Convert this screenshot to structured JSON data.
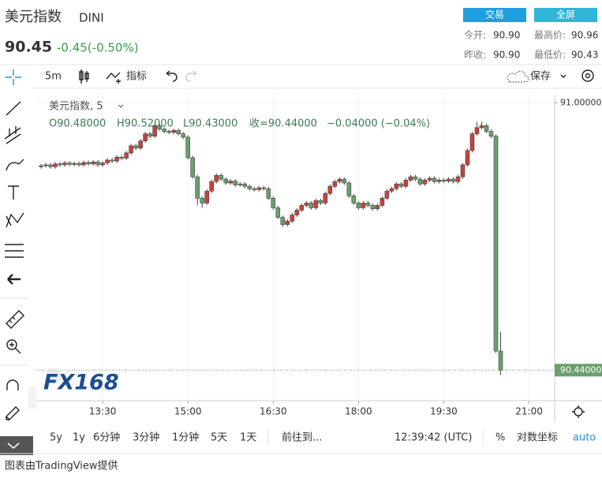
{
  "header": {
    "title": "美元指数",
    "symbol": "DINI",
    "price": "90.45",
    "change": "-0.45(-0.50%)",
    "trade_button": "交易",
    "fullscreen_button": "全屏"
  },
  "stats": {
    "open_label": "今开:",
    "open": "90.90",
    "high_label": "最高价:",
    "high": "90.96",
    "prev_close_label": "昨收:",
    "prev_close": "90.90",
    "low_label": "最低价:",
    "low": "90.43"
  },
  "toolbar": {
    "interval": "5m",
    "indicators": "指标",
    "save": "保存"
  },
  "bottom_bar": {
    "ranges": [
      "5y",
      "1y",
      "6分钟",
      "3分钟",
      "1分钟",
      "5天",
      "1天"
    ],
    "goto": "前往到...",
    "time": "12:39:42 (UTC)",
    "percent": "%",
    "log": "对数坐标",
    "auto": "auto"
  },
  "footer": "图表由TradingView提供",
  "watermark": "FX168",
  "chart_data": {
    "type": "candlestick",
    "legend_title": "美元指数, 5",
    "legend_values": [
      "O90.48000",
      "H90.52000",
      "L90.43000",
      "收=90.44000",
      "−0.04000 (−0.04%)"
    ],
    "up_color": "#c8423b",
    "down_color": "#6a9f6e",
    "x": [
      "12:25",
      "12:30",
      "12:35",
      "12:40",
      "12:45",
      "12:50",
      "12:55",
      "13:00",
      "13:05",
      "13:10",
      "13:15",
      "13:20",
      "13:25",
      "13:30",
      "13:35",
      "13:40",
      "13:45",
      "13:50",
      "13:55",
      "14:00",
      "14:05",
      "14:10",
      "14:15",
      "14:20",
      "14:25",
      "14:30",
      "14:35",
      "14:40",
      "14:45",
      "14:50",
      "14:55",
      "15:00",
      "15:05",
      "15:10",
      "15:15",
      "15:20",
      "15:25",
      "15:30",
      "15:35",
      "15:40",
      "15:45",
      "15:50",
      "15:55",
      "16:00",
      "16:05",
      "16:10",
      "16:15",
      "16:20",
      "16:25",
      "16:30",
      "16:35",
      "16:40",
      "16:45",
      "16:50",
      "16:55",
      "17:00",
      "17:05",
      "17:10",
      "17:15",
      "17:20",
      "17:25",
      "17:30",
      "17:35",
      "17:40",
      "17:45",
      "17:50",
      "17:55",
      "18:00",
      "18:05",
      "18:10",
      "18:15",
      "18:20",
      "18:25",
      "18:30",
      "18:35",
      "18:40",
      "18:45",
      "18:50",
      "18:55",
      "19:00",
      "19:05",
      "19:10",
      "19:15",
      "19:20",
      "19:25",
      "19:30",
      "19:35",
      "19:40",
      "19:45",
      "19:50",
      "19:55",
      "20:00",
      "20:05",
      "20:10",
      "20:15",
      "20:20",
      "20:25",
      "20:30"
    ],
    "open": [
      90.866,
      90.868,
      90.87,
      90.866,
      90.872,
      90.87,
      90.874,
      90.871,
      90.873,
      90.87,
      90.875,
      90.872,
      90.876,
      90.87,
      90.874,
      90.88,
      90.878,
      90.886,
      90.884,
      90.895,
      90.91,
      90.905,
      90.92,
      90.935,
      90.93,
      90.952,
      90.945,
      90.94,
      90.938,
      90.942,
      90.935,
      90.928,
      90.885,
      90.845,
      90.8,
      90.79,
      90.815,
      90.835,
      90.848,
      90.84,
      90.832,
      90.836,
      90.828,
      90.83,
      90.825,
      90.82,
      90.818,
      90.822,
      90.82,
      90.8,
      90.78,
      90.76,
      90.745,
      90.752,
      90.765,
      90.775,
      90.785,
      90.79,
      90.78,
      90.795,
      90.79,
      90.81,
      90.825,
      90.835,
      90.84,
      90.832,
      90.805,
      90.79,
      90.78,
      90.79,
      90.785,
      90.778,
      90.785,
      90.8,
      90.815,
      90.82,
      90.83,
      90.825,
      90.838,
      90.845,
      90.84,
      90.83,
      90.838,
      90.842,
      90.835,
      90.838,
      90.836,
      90.84,
      90.835,
      90.845,
      90.87,
      90.9,
      90.935,
      90.948,
      90.952,
      90.94,
      90.93,
      90.48
    ],
    "high": [
      90.872,
      90.874,
      90.874,
      90.876,
      90.876,
      90.878,
      90.878,
      90.877,
      90.877,
      90.879,
      90.879,
      90.88,
      90.88,
      90.878,
      90.884,
      90.884,
      90.89,
      90.89,
      90.899,
      90.914,
      90.914,
      90.924,
      90.939,
      90.939,
      90.956,
      90.956,
      90.949,
      90.944,
      90.946,
      90.946,
      90.939,
      90.932,
      90.889,
      90.849,
      90.804,
      90.819,
      90.839,
      90.852,
      90.852,
      90.844,
      90.84,
      90.84,
      90.834,
      90.834,
      90.829,
      90.824,
      90.826,
      90.826,
      90.824,
      90.804,
      90.784,
      90.764,
      90.756,
      90.769,
      90.779,
      90.789,
      90.794,
      90.794,
      90.799,
      90.799,
      90.814,
      90.829,
      90.839,
      90.844,
      90.844,
      90.836,
      90.809,
      90.794,
      90.794,
      90.794,
      90.789,
      90.789,
      90.804,
      90.819,
      90.824,
      90.834,
      90.834,
      90.842,
      90.849,
      90.849,
      90.844,
      90.842,
      90.846,
      90.846,
      90.842,
      90.842,
      90.844,
      90.844,
      90.849,
      90.874,
      90.904,
      90.939,
      90.96,
      90.96,
      90.956,
      90.944,
      90.934,
      90.52
    ],
    "low": [
      90.862,
      90.864,
      90.862,
      90.862,
      90.866,
      90.866,
      90.867,
      90.867,
      90.866,
      90.866,
      90.868,
      90.868,
      90.866,
      90.866,
      90.87,
      90.874,
      90.874,
      90.88,
      90.88,
      90.891,
      90.901,
      90.901,
      90.916,
      90.926,
      90.926,
      90.941,
      90.936,
      90.934,
      90.934,
      90.931,
      90.924,
      90.881,
      90.841,
      90.785,
      90.78,
      90.786,
      90.811,
      90.831,
      90.836,
      90.828,
      90.828,
      90.824,
      90.824,
      90.821,
      90.816,
      90.814,
      90.814,
      90.816,
      90.796,
      90.776,
      90.756,
      90.74,
      90.741,
      90.748,
      90.761,
      90.771,
      90.781,
      90.776,
      90.776,
      90.786,
      90.786,
      90.806,
      90.821,
      90.831,
      90.828,
      90.801,
      90.786,
      90.776,
      90.776,
      90.781,
      90.774,
      90.774,
      90.781,
      90.796,
      90.811,
      90.816,
      90.821,
      90.821,
      90.834,
      90.836,
      90.826,
      90.826,
      90.834,
      90.831,
      90.831,
      90.832,
      90.832,
      90.831,
      90.831,
      90.841,
      90.866,
      90.896,
      90.931,
      90.944,
      90.936,
      90.926,
      90.476,
      90.43
    ],
    "close": [
      90.868,
      90.87,
      90.866,
      90.872,
      90.87,
      90.874,
      90.871,
      90.873,
      90.87,
      90.875,
      90.872,
      90.876,
      90.87,
      90.874,
      90.88,
      90.878,
      90.886,
      90.884,
      90.895,
      90.91,
      90.905,
      90.92,
      90.935,
      90.93,
      90.952,
      90.945,
      90.94,
      90.938,
      90.942,
      90.935,
      90.928,
      90.885,
      90.845,
      90.8,
      90.79,
      90.815,
      90.835,
      90.848,
      90.84,
      90.832,
      90.836,
      90.828,
      90.83,
      90.825,
      90.82,
      90.818,
      90.822,
      90.82,
      90.8,
      90.78,
      90.76,
      90.745,
      90.752,
      90.765,
      90.775,
      90.785,
      90.79,
      90.78,
      90.795,
      90.79,
      90.81,
      90.825,
      90.835,
      90.84,
      90.832,
      90.805,
      90.79,
      90.78,
      90.79,
      90.785,
      90.778,
      90.785,
      90.8,
      90.815,
      90.82,
      90.83,
      90.825,
      90.838,
      90.845,
      90.84,
      90.83,
      90.838,
      90.842,
      90.835,
      90.838,
      90.836,
      90.84,
      90.835,
      90.845,
      90.87,
      90.9,
      90.935,
      90.948,
      90.952,
      90.94,
      90.93,
      90.48,
      90.44
    ],
    "xlim": [
      "12:20",
      "21:27"
    ],
    "xticks": [
      "13:30",
      "15:00",
      "16:30",
      "18:00",
      "19:30",
      "21:00"
    ],
    "ylim": [
      90.376,
      91.017
    ],
    "yticks": [
      {
        "value": 91,
        "label": "91.00000"
      }
    ],
    "last_price": {
      "value": 90.44,
      "label": "90.44000"
    },
    "last_price_color": "#6a9f6e",
    "grid": true
  }
}
